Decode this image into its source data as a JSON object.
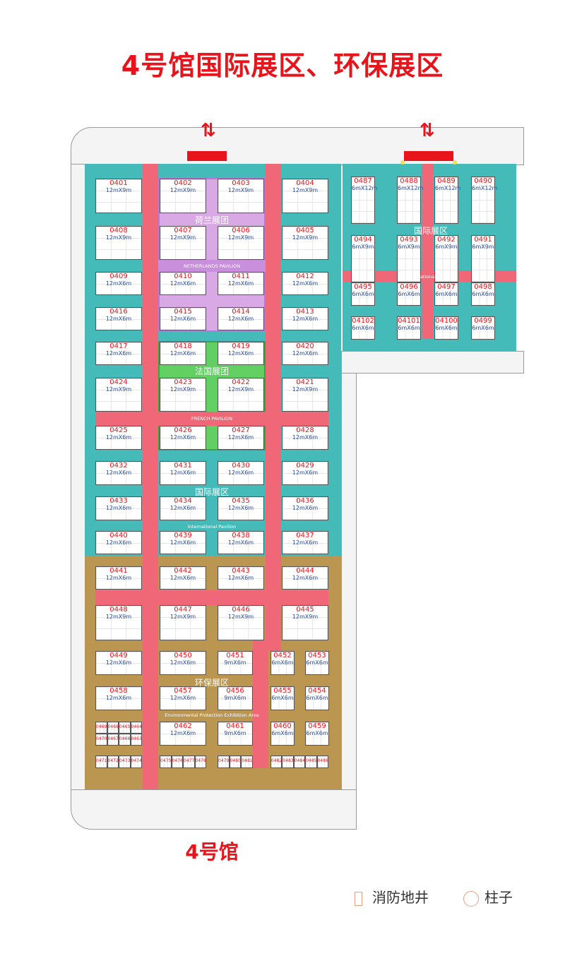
{
  "title": "4号馆国际展区、环保展区",
  "hall_name": "4号馆",
  "colors": {
    "international": "#45bbb9",
    "environmental": "#bb9650",
    "aisle": "#f06878",
    "netherlands": "#d8a9e4",
    "french": "#62cf62",
    "title": "#e8141c"
  },
  "zones": {
    "netherlands": {
      "zh": "荷兰展团",
      "en": "NETHERLANDS PAVILION"
    },
    "french": {
      "zh": "法国展团",
      "en": "FRENCH PAVILION"
    },
    "international_main": {
      "zh": "国际展区",
      "en": "International Pavilion"
    },
    "environmental": {
      "zh": "环保展区",
      "en": "Environmental Protection Exhibition Area"
    },
    "international_east": {
      "zh": "国际展区",
      "en": "International Pavilion"
    }
  },
  "main_hall": {
    "rows": [
      [
        [
          "0401",
          "12mX9m"
        ],
        [
          "0402",
          "12mX9m"
        ],
        [
          "0403",
          "12mX9m"
        ],
        [
          "0404",
          "12mX9m"
        ]
      ],
      [
        [
          "0408",
          "12mX9m"
        ],
        [
          "0407",
          "12mX9m"
        ],
        [
          "0406",
          "12mX9m"
        ],
        [
          "0405",
          "12mX9m"
        ]
      ],
      [
        [
          "0409",
          "12mX6m"
        ],
        [
          "0410",
          "12mX6m"
        ],
        [
          "0411",
          "12mX6m"
        ],
        [
          "0412",
          "12mX6m"
        ]
      ],
      [
        [
          "0416",
          "12mX6m"
        ],
        [
          "0415",
          "12mX6m"
        ],
        [
          "0414",
          "12mX6m"
        ],
        [
          "0413",
          "12mX6m"
        ]
      ],
      [
        [
          "0417",
          "12mX6m"
        ],
        [
          "0418",
          "12mX6m"
        ],
        [
          "0419",
          "12mX6m"
        ],
        [
          "0420",
          "12mX6m"
        ]
      ],
      [
        [
          "0424",
          "12mX9m"
        ],
        [
          "0423",
          "12mX9m"
        ],
        [
          "0422",
          "12mX9m"
        ],
        [
          "0421",
          "12mX9m"
        ]
      ],
      [
        [
          "0425",
          "12mX6m"
        ],
        [
          "0426",
          "12mX6m"
        ],
        [
          "0427",
          "12mX6m"
        ],
        [
          "0428",
          "12mX6m"
        ]
      ],
      [
        [
          "0432",
          "12mX6m"
        ],
        [
          "0431",
          "12mX6m"
        ],
        [
          "0430",
          "12mX6m"
        ],
        [
          "0429",
          "12mX6m"
        ]
      ],
      [
        [
          "0433",
          "12mX6m"
        ],
        [
          "0434",
          "12mX6m"
        ],
        [
          "0435",
          "12mX6m"
        ],
        [
          "0436",
          "12mX6m"
        ]
      ],
      [
        [
          "0440",
          "12mX6m"
        ],
        [
          "0439",
          "12mX6m"
        ],
        [
          "0438",
          "12mX6m"
        ],
        [
          "0437",
          "12mX6m"
        ]
      ],
      [
        [
          "0441",
          "12mX6m"
        ],
        [
          "0442",
          "12mX6m"
        ],
        [
          "0443",
          "12mX6m"
        ],
        [
          "0444",
          "12mX6m"
        ]
      ],
      [
        [
          "0448",
          "12mX9m"
        ],
        [
          "0447",
          "12mX9m"
        ],
        [
          "0446",
          "12mX9m"
        ],
        [
          "0445",
          "12mX9m"
        ]
      ],
      [
        [
          "0449",
          "12mX6m"
        ],
        [
          "0450",
          "12mX6m"
        ],
        [
          "0451",
          "9mX6m"
        ],
        [
          "0452",
          "6mX6m"
        ],
        [
          "0453",
          "6mX6m"
        ]
      ],
      [
        [
          "0458",
          "12mX6m"
        ],
        [
          "0457",
          "12mX6m"
        ],
        [
          "0456",
          "9mX6m"
        ],
        [
          "0455",
          "6mX6m"
        ],
        [
          "0454",
          "6mX6m"
        ]
      ],
      [
        [
          null,
          null
        ],
        [
          "0462",
          "12mX6m"
        ],
        [
          "0461",
          "9mX6m"
        ],
        [
          "0460",
          "6mX6m"
        ],
        [
          "0459",
          "6mX6m"
        ]
      ]
    ],
    "small_booths": {
      "grid": [
        [
          "0469",
          "0468",
          "0465",
          "0464"
        ],
        [
          "0470",
          "0467",
          "0466",
          "0463"
        ]
      ],
      "bottom": [
        [
          "0471",
          "0472",
          "0473",
          "0474"
        ],
        [
          "0475",
          "0476",
          "0477",
          "0478"
        ],
        [
          "0479",
          "0480",
          "0481"
        ],
        [
          "0482",
          "0483",
          "0484",
          "0485",
          "0486"
        ]
      ]
    }
  },
  "east_hall": {
    "rows": [
      [
        [
          "0487",
          "6mX12m"
        ],
        [
          "0488",
          "6mX12m"
        ],
        [
          "0489",
          "6mX12m"
        ],
        [
          "0490",
          "6mX12m"
        ]
      ],
      [
        [
          "0494",
          "6mX9m"
        ],
        [
          "0493",
          "6mX9m"
        ],
        [
          "0492",
          "6mX9m"
        ],
        [
          "0491",
          "6mX9m"
        ]
      ],
      [
        [
          "0495",
          "6mX6m"
        ],
        [
          "0496",
          "6mX6m"
        ],
        [
          "0497",
          "6mX6m"
        ],
        [
          "0498",
          "6mX6m"
        ]
      ],
      [
        [
          "04102",
          "6mX6m"
        ],
        [
          "04101",
          "6mX6m"
        ],
        [
          "04100",
          "6mX6m"
        ],
        [
          "0499",
          "6mX6m"
        ]
      ]
    ]
  },
  "legend": [
    {
      "icon": "fire-well-icon",
      "label": "消防地井"
    },
    {
      "icon": "pillar-icon",
      "label": "柱子"
    }
  ]
}
